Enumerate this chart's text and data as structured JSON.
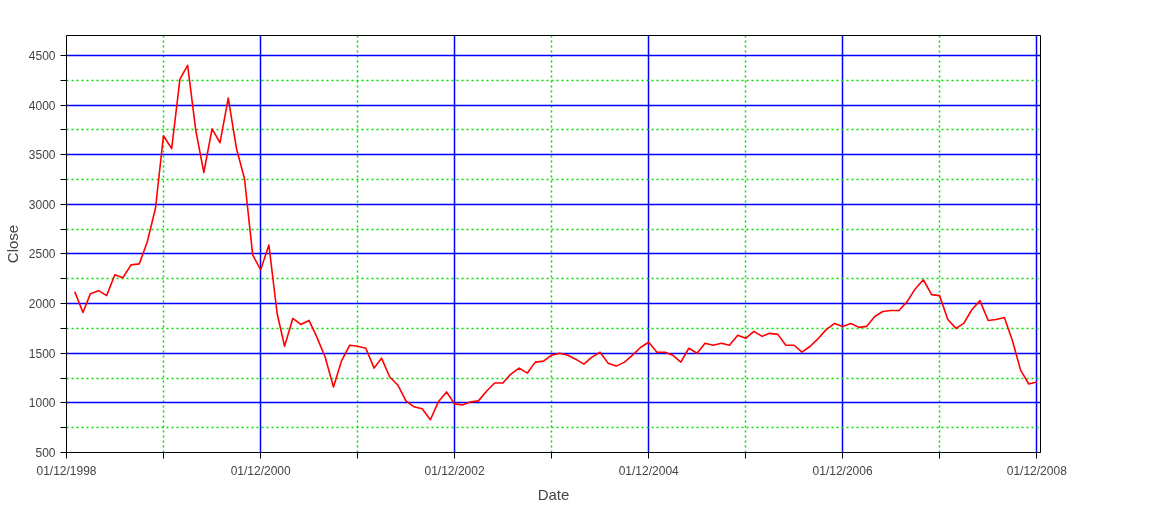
{
  "chart_data": {
    "type": "line",
    "xlabel": "Date",
    "ylabel": "Close",
    "x": [
      "1999-01",
      "1999-02",
      "1999-03",
      "1999-04",
      "1999-05",
      "1999-06",
      "1999-07",
      "1999-08",
      "1999-09",
      "1999-10",
      "1999-11",
      "1999-12",
      "2000-01",
      "2000-02",
      "2000-03",
      "2000-04",
      "2000-05",
      "2000-06",
      "2000-07",
      "2000-08",
      "2000-09",
      "2000-10",
      "2000-11",
      "2000-12",
      "2001-01",
      "2001-02",
      "2001-03",
      "2001-04",
      "2001-05",
      "2001-06",
      "2001-07",
      "2001-08",
      "2001-09",
      "2001-10",
      "2001-11",
      "2001-12",
      "2002-01",
      "2002-02",
      "2002-03",
      "2002-04",
      "2002-05",
      "2002-06",
      "2002-07",
      "2002-08",
      "2002-09",
      "2002-10",
      "2002-11",
      "2002-12",
      "2003-01",
      "2003-02",
      "2003-03",
      "2003-04",
      "2003-05",
      "2003-06",
      "2003-07",
      "2003-08",
      "2003-09",
      "2003-10",
      "2003-11",
      "2003-12",
      "2004-01",
      "2004-02",
      "2004-03",
      "2004-04",
      "2004-05",
      "2004-06",
      "2004-07",
      "2004-08",
      "2004-09",
      "2004-10",
      "2004-11",
      "2004-12",
      "2005-01",
      "2005-02",
      "2005-03",
      "2005-04",
      "2005-05",
      "2005-06",
      "2005-07",
      "2005-08",
      "2005-09",
      "2005-10",
      "2005-11",
      "2005-12",
      "2006-01",
      "2006-02",
      "2006-03",
      "2006-04",
      "2006-05",
      "2006-06",
      "2006-07",
      "2006-08",
      "2006-09",
      "2006-10",
      "2006-11",
      "2006-12",
      "2007-01",
      "2007-02",
      "2007-03",
      "2007-04",
      "2007-05",
      "2007-06",
      "2007-07",
      "2007-08",
      "2007-09",
      "2007-10",
      "2007-11",
      "2007-12",
      "2008-01",
      "2008-02",
      "2008-03",
      "2008-04",
      "2008-05",
      "2008-06",
      "2008-07",
      "2008-08",
      "2008-09",
      "2008-10",
      "2008-11",
      "2008-12"
    ],
    "series": [
      {
        "color": "#ff0000",
        "values": [
          2120,
          1910,
          2100,
          2130,
          2080,
          2290,
          2260,
          2390,
          2400,
          2620,
          2960,
          3690,
          3560,
          4260,
          4400,
          3740,
          3320,
          3760,
          3620,
          4070,
          3560,
          3260,
          2490,
          2340,
          2590,
          1900,
          1570,
          1850,
          1790,
          1830,
          1660,
          1460,
          1160,
          1420,
          1580,
          1570,
          1550,
          1350,
          1450,
          1260,
          1180,
          1020,
          960,
          940,
          830,
          1010,
          1110,
          990,
          980,
          1010,
          1020,
          1120,
          1200,
          1200,
          1290,
          1350,
          1300,
          1410,
          1420,
          1480,
          1500,
          1480,
          1440,
          1390,
          1460,
          1510,
          1400,
          1370,
          1410,
          1480,
          1560,
          1610,
          1510,
          1510,
          1480,
          1410,
          1550,
          1500,
          1600,
          1580,
          1600,
          1580,
          1680,
          1650,
          1720,
          1670,
          1700,
          1690,
          1580,
          1580,
          1510,
          1570,
          1650,
          1740,
          1800,
          1770,
          1800,
          1760,
          1770,
          1870,
          1920,
          1930,
          1930,
          2020,
          2150,
          2240,
          2090,
          2080,
          1840,
          1750,
          1800,
          1940,
          2030,
          1830,
          1840,
          1860,
          1620,
          1330,
          1190,
          1210
        ]
      }
    ],
    "xlim": [
      "1998-12-01",
      "2008-12-15"
    ],
    "xticks": [
      {
        "value": "1998-12-01",
        "label": "01/12/1998"
      },
      {
        "value": "1999-12-01",
        "label": null
      },
      {
        "value": "2000-12-01",
        "label": "01/12/2000"
      },
      {
        "value": "2001-12-01",
        "label": null
      },
      {
        "value": "2002-12-01",
        "label": "01/12/2002"
      },
      {
        "value": "2003-12-01",
        "label": null
      },
      {
        "value": "2004-12-01",
        "label": "01/12/2004"
      },
      {
        "value": "2005-12-01",
        "label": null
      },
      {
        "value": "2006-12-01",
        "label": "01/12/2006"
      },
      {
        "value": "2007-12-01",
        "label": null
      },
      {
        "value": "2008-12-01",
        "label": "01/12/2008"
      }
    ],
    "ylim": [
      500,
      4700
    ],
    "yticks": [
      500,
      {
        "value": 750,
        "label": null
      },
      1000,
      {
        "value": 1250,
        "label": null
      },
      1500,
      {
        "value": 1750,
        "label": null
      },
      2000,
      {
        "value": 2250,
        "label": null
      },
      2500,
      {
        "value": 2750,
        "label": null
      },
      3000,
      {
        "value": 3250,
        "label": null
      },
      3500,
      {
        "value": 3750,
        "label": null
      },
      4000,
      {
        "value": 4250,
        "label": null
      },
      4500
    ],
    "grid": true,
    "marker": "none",
    "line_style": "solid"
  }
}
